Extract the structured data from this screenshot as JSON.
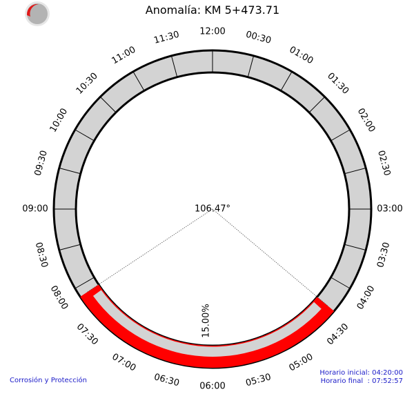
{
  "header": {
    "title": "Anomalía: KM 5+473.71"
  },
  "footer": {
    "company": "Corrosión y Protección",
    "start_time": "Horario inicial: 04:20:00",
    "end_time": "Horario final  : 07:52:57"
  },
  "chart_data": {
    "type": "clock-dial",
    "title": "Anomalía: KM 5+473.71",
    "ticks": [
      "12:00",
      "00:30",
      "01:00",
      "01:30",
      "02:00",
      "02:30",
      "03:00",
      "03:30",
      "04:00",
      "04:30",
      "05:00",
      "05:30",
      "06:00",
      "06:30",
      "07:00",
      "07:30",
      "08:00",
      "08:30",
      "09:00",
      "09:30",
      "10:00",
      "10:30",
      "11:00",
      "11:30"
    ],
    "start": "04:20:00",
    "end": "07:52:57",
    "angle_label": "106.47°",
    "percent_label": "15.00%",
    "percent": 15.0,
    "colors": {
      "ring": "#d3d3d3",
      "highlight": "#ff0000",
      "outline": "#000000"
    }
  }
}
